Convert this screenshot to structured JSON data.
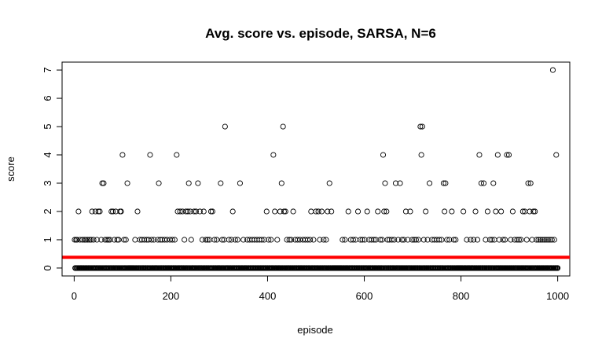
{
  "chart_data": {
    "type": "scatter",
    "title": "Avg. score vs. episode, SARSA, N=6",
    "xlabel": "episode",
    "ylabel": "score",
    "xlim": [
      -25,
      1025
    ],
    "ylim": [
      -0.28,
      7.28
    ],
    "xticks": [
      0,
      200,
      400,
      600,
      800,
      1000
    ],
    "yticks": [
      0,
      1,
      2,
      3,
      4,
      5,
      6,
      7
    ],
    "grid": false,
    "legend": "none",
    "episodes": 1000,
    "baseline_score": 0,
    "reference_line": {
      "y": 0.38,
      "color": "#ff0000"
    },
    "series": [
      {
        "marker": "open-circle",
        "color": "#000000",
        "nonzero_points": [
          {
            "x": 1,
            "y": 1
          },
          {
            "x": 4,
            "y": 1
          },
          {
            "x": 6,
            "y": 1
          },
          {
            "x": 9,
            "y": 2
          },
          {
            "x": 12,
            "y": 1
          },
          {
            "x": 17,
            "y": 1
          },
          {
            "x": 21,
            "y": 1
          },
          {
            "x": 24,
            "y": 1
          },
          {
            "x": 28,
            "y": 1
          },
          {
            "x": 32,
            "y": 1
          },
          {
            "x": 35,
            "y": 1
          },
          {
            "x": 37,
            "y": 2
          },
          {
            "x": 40,
            "y": 1
          },
          {
            "x": 44,
            "y": 2
          },
          {
            "x": 47,
            "y": 1
          },
          {
            "x": 50,
            "y": 2
          },
          {
            "x": 53,
            "y": 2
          },
          {
            "x": 56,
            "y": 1
          },
          {
            "x": 58,
            "y": 3
          },
          {
            "x": 61,
            "y": 3
          },
          {
            "x": 64,
            "y": 1
          },
          {
            "x": 68,
            "y": 1
          },
          {
            "x": 71,
            "y": 1
          },
          {
            "x": 74,
            "y": 1
          },
          {
            "x": 77,
            "y": 2
          },
          {
            "x": 80,
            "y": 2
          },
          {
            "x": 83,
            "y": 1
          },
          {
            "x": 86,
            "y": 2
          },
          {
            "x": 89,
            "y": 1
          },
          {
            "x": 92,
            "y": 1
          },
          {
            "x": 95,
            "y": 2
          },
          {
            "x": 97,
            "y": 2
          },
          {
            "x": 100,
            "y": 4
          },
          {
            "x": 103,
            "y": 1
          },
          {
            "x": 107,
            "y": 1
          },
          {
            "x": 110,
            "y": 3
          },
          {
            "x": 126,
            "y": 1
          },
          {
            "x": 131,
            "y": 2
          },
          {
            "x": 136,
            "y": 1
          },
          {
            "x": 140,
            "y": 1
          },
          {
            "x": 145,
            "y": 1
          },
          {
            "x": 150,
            "y": 1
          },
          {
            "x": 154,
            "y": 1
          },
          {
            "x": 157,
            "y": 4
          },
          {
            "x": 160,
            "y": 1
          },
          {
            "x": 165,
            "y": 1
          },
          {
            "x": 173,
            "y": 1
          },
          {
            "x": 175,
            "y": 3
          },
          {
            "x": 178,
            "y": 1
          },
          {
            "x": 182,
            "y": 1
          },
          {
            "x": 187,
            "y": 1
          },
          {
            "x": 192,
            "y": 1
          },
          {
            "x": 198,
            "y": 1
          },
          {
            "x": 203,
            "y": 1
          },
          {
            "x": 208,
            "y": 1
          },
          {
            "x": 212,
            "y": 4
          },
          {
            "x": 214,
            "y": 2
          },
          {
            "x": 219,
            "y": 2
          },
          {
            "x": 224,
            "y": 2
          },
          {
            "x": 228,
            "y": 1
          },
          {
            "x": 231,
            "y": 2
          },
          {
            "x": 235,
            "y": 2
          },
          {
            "x": 237,
            "y": 3
          },
          {
            "x": 240,
            "y": 2
          },
          {
            "x": 242,
            "y": 1
          },
          {
            "x": 248,
            "y": 2
          },
          {
            "x": 252,
            "y": 2
          },
          {
            "x": 256,
            "y": 3
          },
          {
            "x": 260,
            "y": 2
          },
          {
            "x": 265,
            "y": 1
          },
          {
            "x": 268,
            "y": 2
          },
          {
            "x": 272,
            "y": 1
          },
          {
            "x": 276,
            "y": 1
          },
          {
            "x": 280,
            "y": 1
          },
          {
            "x": 283,
            "y": 2
          },
          {
            "x": 286,
            "y": 2
          },
          {
            "x": 290,
            "y": 1
          },
          {
            "x": 295,
            "y": 1
          },
          {
            "x": 303,
            "y": 3
          },
          {
            "x": 306,
            "y": 1
          },
          {
            "x": 310,
            "y": 1
          },
          {
            "x": 312,
            "y": 5
          },
          {
            "x": 320,
            "y": 1
          },
          {
            "x": 325,
            "y": 1
          },
          {
            "x": 328,
            "y": 2
          },
          {
            "x": 333,
            "y": 1
          },
          {
            "x": 338,
            "y": 1
          },
          {
            "x": 343,
            "y": 3
          },
          {
            "x": 350,
            "y": 1
          },
          {
            "x": 358,
            "y": 1
          },
          {
            "x": 363,
            "y": 1
          },
          {
            "x": 368,
            "y": 1
          },
          {
            "x": 373,
            "y": 1
          },
          {
            "x": 378,
            "y": 1
          },
          {
            "x": 383,
            "y": 1
          },
          {
            "x": 388,
            "y": 1
          },
          {
            "x": 393,
            "y": 1
          },
          {
            "x": 398,
            "y": 2
          },
          {
            "x": 402,
            "y": 1
          },
          {
            "x": 407,
            "y": 1
          },
          {
            "x": 412,
            "y": 4
          },
          {
            "x": 415,
            "y": 2
          },
          {
            "x": 420,
            "y": 1
          },
          {
            "x": 426,
            "y": 2
          },
          {
            "x": 429,
            "y": 3
          },
          {
            "x": 432,
            "y": 5
          },
          {
            "x": 434,
            "y": 2
          },
          {
            "x": 437,
            "y": 2
          },
          {
            "x": 440,
            "y": 1
          },
          {
            "x": 445,
            "y": 1
          },
          {
            "x": 449,
            "y": 1
          },
          {
            "x": 453,
            "y": 2
          },
          {
            "x": 457,
            "y": 1
          },
          {
            "x": 462,
            "y": 1
          },
          {
            "x": 467,
            "y": 1
          },
          {
            "x": 473,
            "y": 1
          },
          {
            "x": 478,
            "y": 1
          },
          {
            "x": 483,
            "y": 1
          },
          {
            "x": 488,
            "y": 1
          },
          {
            "x": 490,
            "y": 2
          },
          {
            "x": 495,
            "y": 1
          },
          {
            "x": 500,
            "y": 2
          },
          {
            "x": 505,
            "y": 2
          },
          {
            "x": 508,
            "y": 1
          },
          {
            "x": 512,
            "y": 2
          },
          {
            "x": 516,
            "y": 1
          },
          {
            "x": 521,
            "y": 1
          },
          {
            "x": 524,
            "y": 2
          },
          {
            "x": 528,
            "y": 3
          },
          {
            "x": 532,
            "y": 2
          },
          {
            "x": 555,
            "y": 1
          },
          {
            "x": 560,
            "y": 1
          },
          {
            "x": 567,
            "y": 2
          },
          {
            "x": 572,
            "y": 1
          },
          {
            "x": 577,
            "y": 1
          },
          {
            "x": 582,
            "y": 1
          },
          {
            "x": 587,
            "y": 2
          },
          {
            "x": 592,
            "y": 1
          },
          {
            "x": 596,
            "y": 1
          },
          {
            "x": 601,
            "y": 1
          },
          {
            "x": 606,
            "y": 2
          },
          {
            "x": 610,
            "y": 1
          },
          {
            "x": 615,
            "y": 1
          },
          {
            "x": 620,
            "y": 1
          },
          {
            "x": 624,
            "y": 1
          },
          {
            "x": 628,
            "y": 2
          },
          {
            "x": 633,
            "y": 1
          },
          {
            "x": 637,
            "y": 1
          },
          {
            "x": 639,
            "y": 4
          },
          {
            "x": 641,
            "y": 2
          },
          {
            "x": 643,
            "y": 3
          },
          {
            "x": 646,
            "y": 2
          },
          {
            "x": 648,
            "y": 1
          },
          {
            "x": 652,
            "y": 1
          },
          {
            "x": 657,
            "y": 1
          },
          {
            "x": 662,
            "y": 1
          },
          {
            "x": 665,
            "y": 3
          },
          {
            "x": 670,
            "y": 1
          },
          {
            "x": 674,
            "y": 3
          },
          {
            "x": 678,
            "y": 1
          },
          {
            "x": 682,
            "y": 1
          },
          {
            "x": 686,
            "y": 2
          },
          {
            "x": 690,
            "y": 1
          },
          {
            "x": 695,
            "y": 2
          },
          {
            "x": 699,
            "y": 1
          },
          {
            "x": 703,
            "y": 1
          },
          {
            "x": 707,
            "y": 1
          },
          {
            "x": 712,
            "y": 1
          },
          {
            "x": 716,
            "y": 5
          },
          {
            "x": 718,
            "y": 4
          },
          {
            "x": 720,
            "y": 5
          },
          {
            "x": 723,
            "y": 1
          },
          {
            "x": 727,
            "y": 2
          },
          {
            "x": 731,
            "y": 1
          },
          {
            "x": 735,
            "y": 3
          },
          {
            "x": 740,
            "y": 1
          },
          {
            "x": 745,
            "y": 1
          },
          {
            "x": 750,
            "y": 1
          },
          {
            "x": 755,
            "y": 1
          },
          {
            "x": 760,
            "y": 1
          },
          {
            "x": 764,
            "y": 3
          },
          {
            "x": 766,
            "y": 2
          },
          {
            "x": 768,
            "y": 3
          },
          {
            "x": 771,
            "y": 1
          },
          {
            "x": 776,
            "y": 1
          },
          {
            "x": 781,
            "y": 2
          },
          {
            "x": 785,
            "y": 1
          },
          {
            "x": 789,
            "y": 1
          },
          {
            "x": 805,
            "y": 2
          },
          {
            "x": 812,
            "y": 1
          },
          {
            "x": 820,
            "y": 1
          },
          {
            "x": 826,
            "y": 1
          },
          {
            "x": 830,
            "y": 2
          },
          {
            "x": 834,
            "y": 1
          },
          {
            "x": 838,
            "y": 4
          },
          {
            "x": 842,
            "y": 3
          },
          {
            "x": 847,
            "y": 3
          },
          {
            "x": 851,
            "y": 1
          },
          {
            "x": 855,
            "y": 2
          },
          {
            "x": 860,
            "y": 1
          },
          {
            "x": 864,
            "y": 1
          },
          {
            "x": 867,
            "y": 3
          },
          {
            "x": 869,
            "y": 1
          },
          {
            "x": 872,
            "y": 2
          },
          {
            "x": 876,
            "y": 4
          },
          {
            "x": 879,
            "y": 1
          },
          {
            "x": 883,
            "y": 2
          },
          {
            "x": 887,
            "y": 1
          },
          {
            "x": 891,
            "y": 1
          },
          {
            "x": 895,
            "y": 4
          },
          {
            "x": 899,
            "y": 4
          },
          {
            "x": 903,
            "y": 1
          },
          {
            "x": 907,
            "y": 2
          },
          {
            "x": 911,
            "y": 1
          },
          {
            "x": 916,
            "y": 1
          },
          {
            "x": 920,
            "y": 1
          },
          {
            "x": 924,
            "y": 1
          },
          {
            "x": 928,
            "y": 2
          },
          {
            "x": 932,
            "y": 2
          },
          {
            "x": 936,
            "y": 1
          },
          {
            "x": 939,
            "y": 3
          },
          {
            "x": 942,
            "y": 2
          },
          {
            "x": 944,
            "y": 3
          },
          {
            "x": 947,
            "y": 1
          },
          {
            "x": 950,
            "y": 2
          },
          {
            "x": 953,
            "y": 2
          },
          {
            "x": 956,
            "y": 1
          },
          {
            "x": 960,
            "y": 1
          },
          {
            "x": 964,
            "y": 1
          },
          {
            "x": 968,
            "y": 1
          },
          {
            "x": 972,
            "y": 1
          },
          {
            "x": 976,
            "y": 1
          },
          {
            "x": 980,
            "y": 1
          },
          {
            "x": 984,
            "y": 1
          },
          {
            "x": 988,
            "y": 1
          },
          {
            "x": 990,
            "y": 7
          },
          {
            "x": 993,
            "y": 1
          },
          {
            "x": 997,
            "y": 4
          }
        ]
      }
    ]
  }
}
